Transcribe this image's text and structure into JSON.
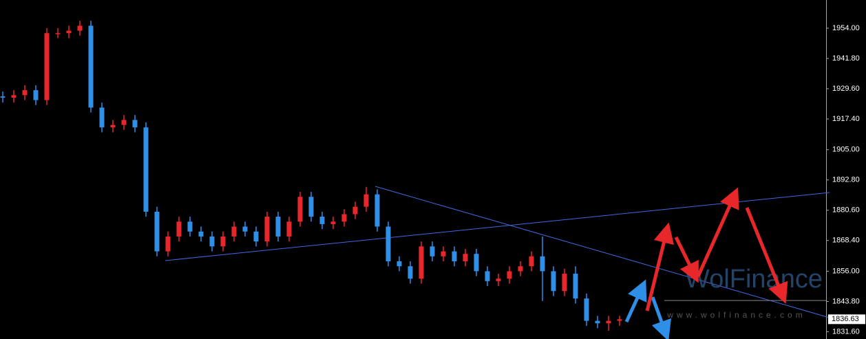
{
  "chart_data": {
    "type": "candlestick",
    "open": [
      1926.5,
      1926,
      1927,
      1929,
      1925,
      1952,
      1952,
      1953,
      1955,
      1922,
      1914,
      1915,
      1917,
      1914,
      1880,
      1864,
      1870,
      1876,
      1872,
      1870,
      1866,
      1870,
      1874,
      1872,
      1868,
      1878,
      1870,
      1876,
      1886,
      1878,
      1875,
      1876,
      1879,
      1882,
      1887,
      1874,
      1860,
      1858,
      1853,
      1866,
      1862,
      1864,
      1860,
      1863,
      1856,
      1852,
      1853,
      1856,
      1858,
      1862,
      1856,
      1848,
      1855,
      1845,
      1836,
      1835,
      1836
    ],
    "high": [
      1928.5,
      1929,
      1931,
      1931,
      1954,
      1954,
      1955,
      1957,
      1957,
      1924,
      1917,
      1919,
      1919,
      1916,
      1882,
      1872,
      1878,
      1878,
      1874,
      1872,
      1872,
      1876,
      1876,
      1874,
      1880,
      1880,
      1878,
      1888,
      1888,
      1880,
      1878,
      1881,
      1884,
      1890,
      1889,
      1876,
      1862,
      1860,
      1868,
      1868,
      1866,
      1866,
      1865,
      1865,
      1858,
      1855,
      1858,
      1860,
      1864,
      1870,
      1858,
      1857,
      1858,
      1847,
      1838,
      1838,
      1838
    ],
    "low": [
      1924,
      1924,
      1925,
      1923,
      1923,
      1950,
      1950,
      1951,
      1920,
      1912,
      1912,
      1913,
      1912,
      1878,
      1862,
      1862,
      1868,
      1870,
      1868,
      1864,
      1864,
      1868,
      1870,
      1866,
      1866,
      1868,
      1868,
      1874,
      1876,
      1873,
      1873,
      1874,
      1877,
      1880,
      1872,
      1858,
      1856,
      1851,
      1851,
      1860,
      1860,
      1858,
      1858,
      1854,
      1850,
      1850,
      1851,
      1854,
      1856,
      1844,
      1846,
      1846,
      1843,
      1834,
      1833,
      1832,
      1834
    ],
    "close": [
      1926,
      1927,
      1929,
      1925,
      1952,
      1952,
      1953,
      1955,
      1922,
      1914,
      1915,
      1917,
      1914,
      1880,
      1864,
      1870,
      1876,
      1872,
      1870,
      1866,
      1870,
      1874,
      1872,
      1868,
      1878,
      1870,
      1876,
      1886,
      1878,
      1875,
      1876,
      1879,
      1882,
      1887,
      1874,
      1860,
      1858,
      1853,
      1866,
      1862,
      1864,
      1860,
      1863,
      1856,
      1852,
      1853,
      1856,
      1858,
      1862,
      1856,
      1848,
      1855,
      1845,
      1836,
      1835,
      1836,
      1836.63
    ],
    "up_color": "#e8272b",
    "down_color": "#2f8fe6",
    "ylim": [
      1828.67,
      1965.37
    ],
    "yticks": [
      {
        "value": 1954,
        "label": "1954.00"
      },
      {
        "value": 1941.8,
        "label": "1941.80"
      },
      {
        "value": 1929.6,
        "label": "1929.60"
      },
      {
        "value": 1917.4,
        "label": "1917.40"
      },
      {
        "value": 1905,
        "label": "1905.00"
      },
      {
        "value": 1892.8,
        "label": "1892.80"
      },
      {
        "value": 1880.6,
        "label": "1880.60"
      },
      {
        "value": 1868.4,
        "label": "1868.40"
      },
      {
        "value": 1856,
        "label": "1856.00"
      },
      {
        "value": 1843.8,
        "label": "1843.80"
      },
      {
        "value": 1831.6,
        "label": "1831.60"
      }
    ],
    "current_price": 1836.63,
    "watermark": "WolFinance",
    "watermark_url": "www.wolfinance.com"
  }
}
